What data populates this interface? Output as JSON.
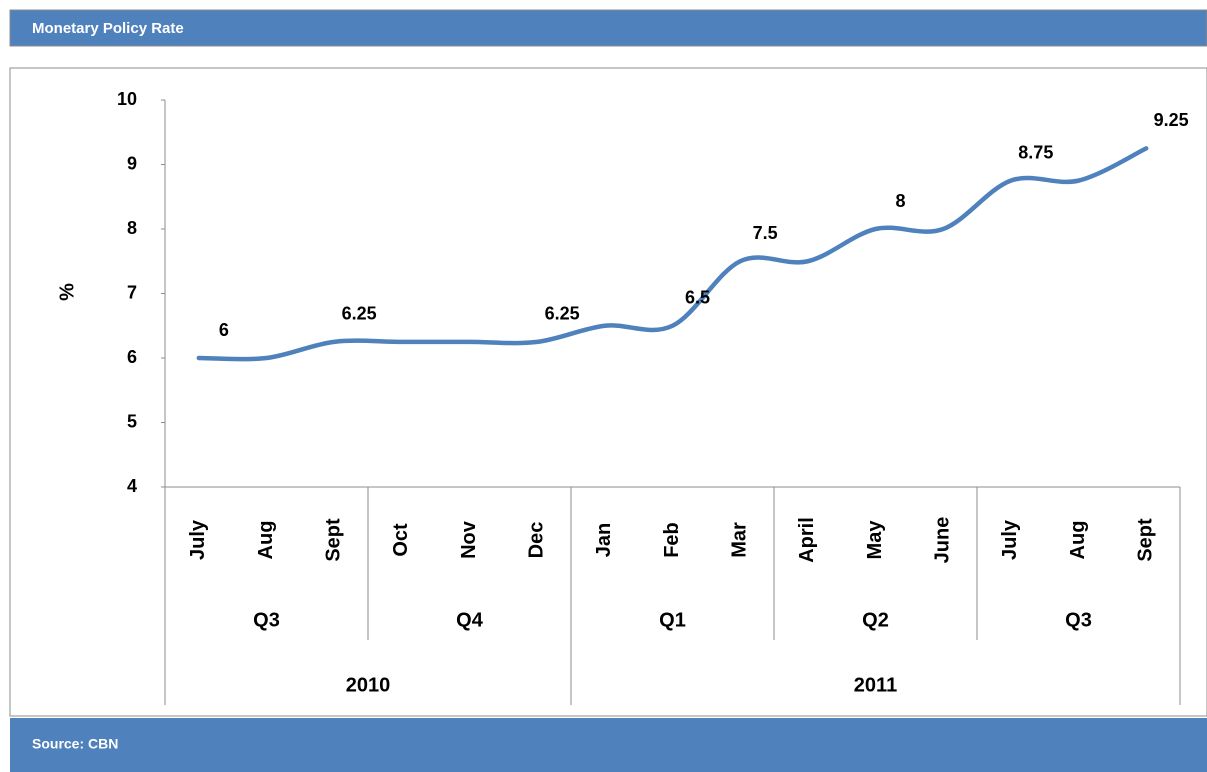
{
  "chart_data": {
    "type": "line",
    "title": "Monetary Policy Rate",
    "source": "Source: CBN",
    "ylabel": "%",
    "categories": [
      "July",
      "Aug",
      "Sept",
      "Oct",
      "Nov",
      "Dec",
      "Jan",
      "Feb",
      "Mar",
      "April",
      "May",
      "June",
      "July",
      "Aug",
      "Sept"
    ],
    "quarters": [
      "Q3",
      "Q3",
      "Q3",
      "Q4",
      "Q4",
      "Q4",
      "Q1",
      "Q1",
      "Q1",
      "Q2",
      "Q2",
      "Q2",
      "Q3",
      "Q3",
      "Q3"
    ],
    "years": [
      "2010",
      "2010",
      "2010",
      "2010",
      "2010",
      "2010",
      "2011",
      "2011",
      "2011",
      "2011",
      "2011",
      "2011",
      "2011",
      "2011",
      "2011"
    ],
    "values": [
      6,
      6,
      6.25,
      6.25,
      6.25,
      6.25,
      6.5,
      6.5,
      7.5,
      7.5,
      8,
      8,
      8.75,
      8.75,
      9.25
    ],
    "value_labels": [
      6,
      null,
      6.25,
      null,
      null,
      6.25,
      null,
      6.5,
      7.5,
      null,
      8,
      null,
      8.75,
      null,
      9.25
    ],
    "color": "#4f81bd",
    "ylim": [
      4,
      10
    ],
    "yticks": [
      4,
      5,
      6,
      7,
      8,
      9,
      10
    ]
  }
}
